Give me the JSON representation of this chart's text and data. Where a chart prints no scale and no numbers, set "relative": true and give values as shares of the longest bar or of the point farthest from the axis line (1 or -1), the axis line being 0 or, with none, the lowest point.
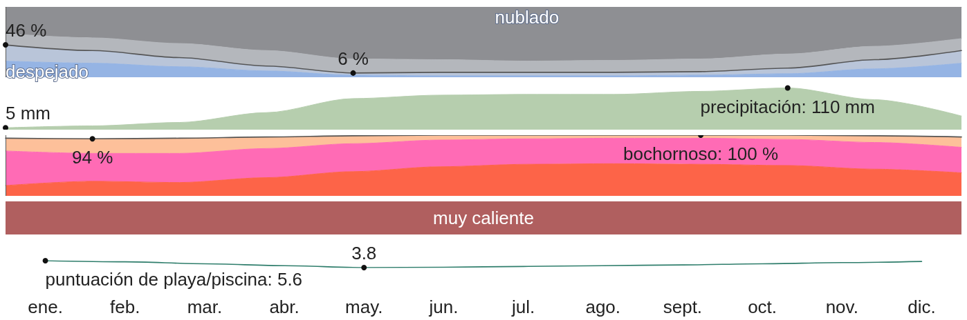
{
  "chart_data": [
    {
      "type": "area",
      "stacked": true,
      "relative": true,
      "tick_labels": false,
      "categories": [
        null,
        null,
        null,
        null,
        null,
        null,
        null,
        null,
        null,
        null,
        null,
        null
      ],
      "series": [
        {
          "name": "despejado",
          "color": "#95b4e4",
          "values": [
            0.23,
            0.2,
            0.15,
            0.09,
            0.03,
            0.02,
            0.02,
            0.02,
            0.03,
            0.05,
            0.12,
            0.2
          ]
        },
        {
          "color": "#b9c5d9",
          "values": [
            0.23,
            0.18,
            0.13,
            0.07,
            0.03,
            0.05,
            0.05,
            0.05,
            0.05,
            0.08,
            0.13,
            0.18
          ]
        },
        {
          "color": "#b4b7bc",
          "values": [
            0.16,
            0.18,
            0.2,
            0.22,
            0.2,
            0.18,
            0.16,
            0.17,
            0.18,
            0.2,
            0.19,
            0.17
          ]
        },
        {
          "name": "nublado",
          "color": "#8e8f93",
          "values": [
            0.38,
            0.44,
            0.52,
            0.62,
            0.74,
            0.75,
            0.77,
            0.76,
            0.74,
            0.67,
            0.56,
            0.45
          ]
        }
      ]
    },
    {
      "type": "line",
      "tick_labels": false,
      "ylim": [
        0,
        100
      ],
      "categories": [
        null,
        null,
        null,
        null,
        null,
        null,
        null,
        null,
        null,
        null,
        null,
        null
      ],
      "series": [
        {
          "color": "#555555",
          "values": [
            46,
            38,
            28,
            16,
            6,
            7,
            7,
            7,
            8,
            13,
            25,
            38
          ],
          "value_labels": [
            "46 %",
            null,
            null,
            null,
            "6 %",
            null,
            null,
            null,
            null,
            null,
            null,
            null
          ]
        }
      ]
    },
    {
      "type": "area",
      "tick_labels": false,
      "categories": [
        null,
        null,
        null,
        null,
        null,
        null,
        null,
        null,
        null,
        null,
        null,
        null
      ],
      "series": [
        {
          "color": "#b6ceae",
          "values": [
            5,
            10,
            19,
            45,
            82,
            91,
            93,
            93,
            101,
            110,
            79,
            36
          ],
          "value_labels": [
            "5 mm",
            null,
            null,
            null,
            null,
            null,
            null,
            null,
            null,
            "precipitación: 110 mm",
            null,
            null
          ]
        }
      ]
    },
    {
      "type": "area",
      "stacked": true,
      "relative": true,
      "tick_labels": false,
      "categories": [
        null,
        null,
        null,
        null,
        null,
        null,
        null,
        null,
        null,
        null,
        null,
        null
      ],
      "series": [
        {
          "color": "#fd6448",
          "values": [
            0.17,
            0.24,
            0.22,
            0.3,
            0.4,
            0.48,
            0.52,
            0.53,
            0.52,
            0.5,
            0.44,
            0.38
          ]
        },
        {
          "color": "#ff6bb5",
          "values": [
            0.57,
            0.46,
            0.48,
            0.48,
            0.46,
            0.44,
            0.42,
            0.42,
            0.43,
            0.43,
            0.44,
            0.42
          ]
        },
        {
          "color": "#fdc09a",
          "values": [
            0.21,
            0.24,
            0.25,
            0.19,
            0.13,
            0.08,
            0.06,
            0.05,
            0.05,
            0.07,
            0.11,
            0.17
          ]
        }
      ]
    },
    {
      "type": "line",
      "tick_labels": false,
      "ylim": [
        0,
        100
      ],
      "categories": [
        null,
        null,
        null,
        null,
        null,
        null,
        null,
        null,
        null,
        null,
        null,
        null
      ],
      "series": [
        {
          "color": "#555555",
          "values": [
            95,
            94,
            95,
            97,
            99,
            100,
            100,
            100,
            100,
            100,
            99,
            97
          ],
          "value_labels": [
            null,
            "94 %",
            null,
            null,
            null,
            null,
            null,
            null,
            "bochornoso: 100 %",
            null,
            null,
            null
          ]
        }
      ]
    },
    {
      "type": "other",
      "categories": [
        null,
        null,
        null,
        null,
        null,
        null,
        null,
        null,
        null,
        null,
        null,
        null
      ],
      "bands": [
        {
          "label": "muy caliente",
          "color": "#b05f5f"
        }
      ]
    },
    {
      "type": "line",
      "tick_labels": "x",
      "categories": [
        "ene.",
        "feb.",
        "mar.",
        "abr.",
        "may.",
        "jun.",
        "jul.",
        "ago.",
        "sept.",
        "oct.",
        "nov.",
        "dic."
      ],
      "series": [
        {
          "color": "#2e7d6b",
          "values": [
            5.6,
            5.3,
            4.8,
            4.3,
            3.8,
            3.9,
            4.1,
            4.3,
            4.5,
            4.8,
            5.1,
            5.4
          ],
          "value_labels": [
            "puntuación de playa/piscina: 5.6",
            null,
            null,
            null,
            "3.8",
            null,
            null,
            null,
            null,
            null,
            null,
            null
          ]
        }
      ]
    }
  ]
}
